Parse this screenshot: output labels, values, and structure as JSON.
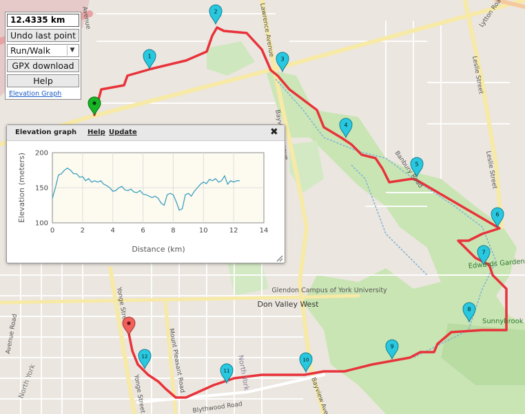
{
  "panel": {
    "distance": "12.4335 km",
    "undo_label": "Undo last point",
    "mode_value": "Run/Walk",
    "gpx_label": "GPX download",
    "help_label": "Help",
    "elevation_link": "Elevation Graph"
  },
  "popup": {
    "title": "Elevation graph",
    "help_label": "Help",
    "update_label": "Update",
    "close_glyph": "✖"
  },
  "chart_data": {
    "type": "line",
    "xlabel": "Distance (km)",
    "ylabel": "Elevation (meters)",
    "xlim": [
      0,
      14
    ],
    "ylim": [
      100,
      200
    ],
    "xticks": [
      0,
      2,
      4,
      6,
      8,
      10,
      12,
      14
    ],
    "yticks": [
      100,
      150,
      200
    ],
    "grid": true,
    "line_color": "#3a9fbf",
    "x": [
      0,
      0.2,
      0.4,
      0.6,
      0.8,
      1.0,
      1.2,
      1.4,
      1.6,
      1.8,
      2.0,
      2.2,
      2.4,
      2.6,
      2.8,
      3.0,
      3.2,
      3.4,
      3.6,
      3.8,
      4.0,
      4.2,
      4.4,
      4.6,
      4.8,
      5.0,
      5.2,
      5.4,
      5.6,
      5.8,
      6.0,
      6.2,
      6.4,
      6.6,
      6.8,
      7.0,
      7.2,
      7.4,
      7.6,
      7.8,
      8.0,
      8.2,
      8.4,
      8.6,
      8.8,
      9.0,
      9.2,
      9.4,
      9.6,
      9.8,
      10.0,
      10.2,
      10.4,
      10.6,
      10.8,
      11.0,
      11.2,
      11.4,
      11.6,
      11.8,
      12.0,
      12.2,
      12.4
    ],
    "y": [
      135,
      150,
      168,
      170,
      175,
      178,
      175,
      170,
      170,
      165,
      166,
      160,
      163,
      158,
      160,
      158,
      160,
      155,
      153,
      150,
      145,
      146,
      150,
      152,
      147,
      146,
      148,
      144,
      143,
      146,
      141,
      140,
      138,
      136,
      138,
      135,
      128,
      125,
      140,
      142,
      140,
      130,
      118,
      120,
      140,
      142,
      138,
      145,
      150,
      155,
      158,
      156,
      162,
      160,
      163,
      158,
      160,
      167,
      155,
      160,
      158,
      160,
      160
    ]
  },
  "map": {
    "labels": [
      "Avenue Road",
      "North York",
      "Yonge Street",
      "Yonge Street",
      "Mount Pleasant Road",
      "North York",
      "Don Valley West",
      "Glendon Campus of York University",
      "Bayview Avenue",
      "Lawrence Avenue",
      "Banbury Road",
      "Edwards Gardens",
      "Sunnybrook Park",
      "Leslie Street",
      "Leslie Street",
      "Lytton Road",
      "Blythwood Road",
      "Bayview Avenue",
      "Avenue"
    ],
    "markers": [
      "1",
      "2",
      "3",
      "4",
      "5",
      "6",
      "7",
      "8",
      "9",
      "10",
      "11",
      "12"
    ]
  }
}
